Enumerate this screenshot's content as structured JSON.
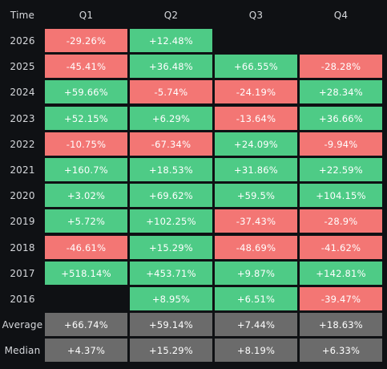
{
  "chart_data": {
    "type": "heatmap",
    "corner_label": "Time",
    "columns": [
      "Q1",
      "Q2",
      "Q3",
      "Q4"
    ],
    "rows": [
      {
        "label": "2026",
        "values": [
          "-29.26%",
          "+12.48%",
          null,
          null
        ]
      },
      {
        "label": "2025",
        "values": [
          "-45.41%",
          "+36.48%",
          "+66.55%",
          "-28.28%"
        ]
      },
      {
        "label": "2024",
        "values": [
          "+59.66%",
          "-5.74%",
          "-24.19%",
          "+28.34%"
        ]
      },
      {
        "label": "2023",
        "values": [
          "+52.15%",
          "+6.29%",
          "-13.64%",
          "+36.66%"
        ]
      },
      {
        "label": "2022",
        "values": [
          "-10.75%",
          "-67.34%",
          "+24.09%",
          "-9.94%"
        ]
      },
      {
        "label": "2021",
        "values": [
          "+160.7%",
          "+18.53%",
          "+31.86%",
          "+22.59%"
        ]
      },
      {
        "label": "2020",
        "values": [
          "+3.02%",
          "+69.62%",
          "+59.5%",
          "+104.15%"
        ]
      },
      {
        "label": "2019",
        "values": [
          "+5.72%",
          "+102.25%",
          "-37.43%",
          "-28.9%"
        ]
      },
      {
        "label": "2018",
        "values": [
          "-46.61%",
          "+15.29%",
          "-48.69%",
          "-41.62%"
        ]
      },
      {
        "label": "2017",
        "values": [
          "+518.14%",
          "+453.71%",
          "+9.87%",
          "+142.81%"
        ]
      },
      {
        "label": "2016",
        "values": [
          null,
          "+8.95%",
          "+6.51%",
          "-39.47%"
        ]
      }
    ],
    "summary_rows": [
      {
        "label": "Average",
        "values": [
          "+66.74%",
          "+59.14%",
          "+7.44%",
          "+18.63%"
        ]
      },
      {
        "label": "Median",
        "values": [
          "+4.37%",
          "+15.29%",
          "+8.19%",
          "+6.33%"
        ]
      }
    ],
    "colors": {
      "positive": "#4ecb86",
      "negative": "#f37674",
      "summary": "#6b6b6b",
      "background": "#0f1114",
      "text": "#ffffff",
      "header_text": "#d6d8dc"
    }
  }
}
